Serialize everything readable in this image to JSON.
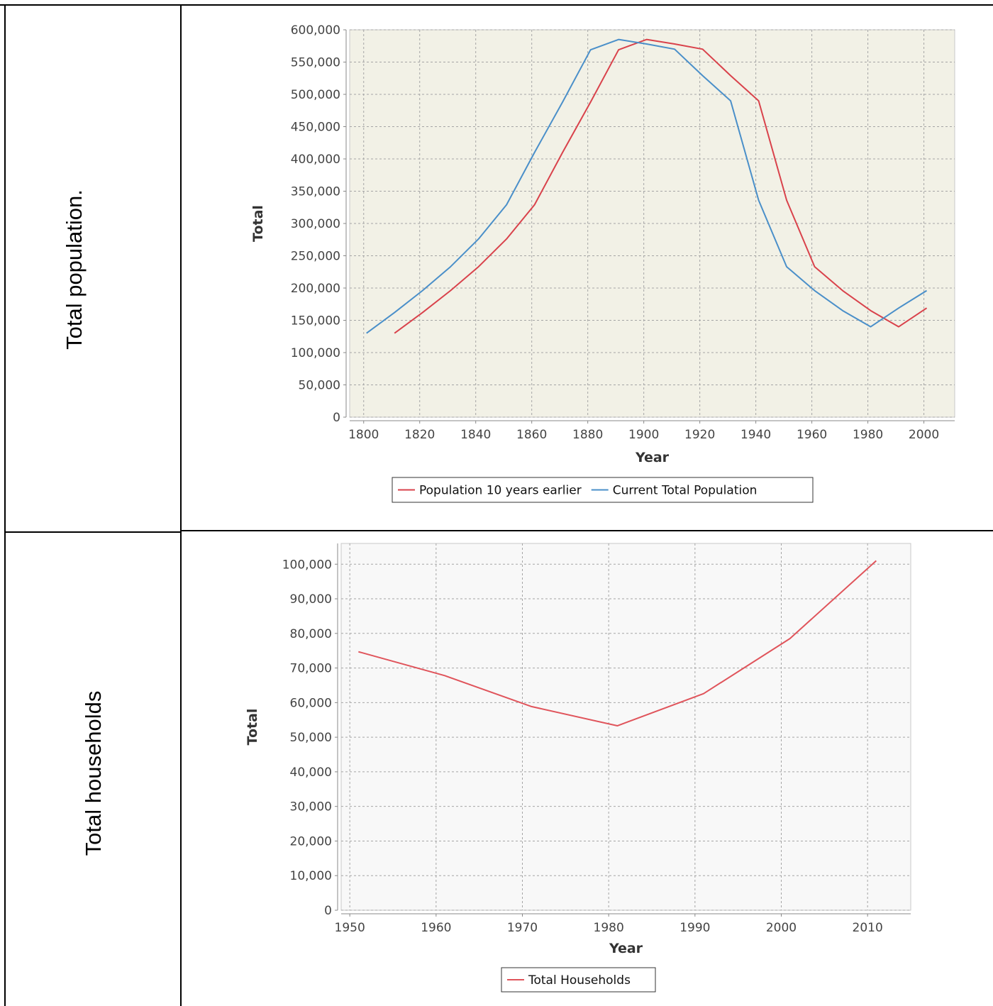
{
  "rows": [
    {
      "label": "Total population."
    },
    {
      "label": "Total households"
    }
  ],
  "chart_data": [
    {
      "type": "line",
      "xlabel": "Year",
      "ylabel": "Total",
      "xlim": [
        1795,
        2011
      ],
      "ylim": [
        0,
        600000
      ],
      "x_ticks": [
        1800,
        1820,
        1840,
        1860,
        1880,
        1900,
        1920,
        1940,
        1960,
        1980,
        2000
      ],
      "y_ticks": [
        0,
        50000,
        100000,
        150000,
        200000,
        250000,
        300000,
        350000,
        400000,
        450000,
        500000,
        550000,
        600000
      ],
      "x_tick_labels": [
        "1800",
        "1820",
        "1840",
        "1860",
        "1880",
        "1900",
        "1920",
        "1940",
        "1960",
        "1980",
        "2000"
      ],
      "y_tick_labels": [
        "0",
        "50,000",
        "100,000",
        "150,000",
        "200,000",
        "250,000",
        "300,000",
        "350,000",
        "400,000",
        "450,000",
        "500,000",
        "550,000",
        "600,000"
      ],
      "grid": true,
      "background": "#f2f1e6",
      "legend_position": "bottom",
      "series": [
        {
          "name": "Population 10 years earlier",
          "color": "#d9424b",
          "x": [
            1811,
            1821,
            1831,
            1841,
            1851,
            1861,
            1871,
            1881,
            1891,
            1901,
            1911,
            1921,
            1931,
            1941,
            1951,
            1961,
            1971,
            1981,
            1991,
            2001
          ],
          "y": [
            130000,
            162000,
            196000,
            233000,
            276000,
            329000,
            410000,
            488000,
            569000,
            585000,
            578000,
            570000,
            529000,
            490000,
            336000,
            233000,
            196000,
            165000,
            140000,
            169000
          ]
        },
        {
          "name": "Current Total Population",
          "color": "#4a8fc9",
          "x": [
            1801,
            1811,
            1821,
            1831,
            1841,
            1851,
            1861,
            1871,
            1881,
            1891,
            1901,
            1911,
            1921,
            1931,
            1941,
            1951,
            1961,
            1971,
            1981,
            1991,
            2001
          ],
          "y": [
            130000,
            162000,
            196000,
            233000,
            276000,
            329000,
            410000,
            488000,
            569000,
            585000,
            578000,
            570000,
            529000,
            490000,
            336000,
            233000,
            196000,
            165000,
            140000,
            169000,
            196000
          ]
        }
      ]
    },
    {
      "type": "line",
      "xlabel": "Year",
      "ylabel": "Total",
      "xlim": [
        1949,
        2015
      ],
      "ylim": [
        0,
        106000
      ],
      "x_ticks": [
        1950,
        1960,
        1970,
        1980,
        1990,
        2000,
        2010
      ],
      "y_ticks": [
        0,
        10000,
        20000,
        30000,
        40000,
        50000,
        60000,
        70000,
        80000,
        90000,
        100000
      ],
      "x_tick_labels": [
        "1950",
        "1960",
        "1970",
        "1980",
        "1990",
        "2000",
        "2010"
      ],
      "y_tick_labels": [
        "0",
        "10,000",
        "20,000",
        "30,000",
        "40,000",
        "50,000",
        "60,000",
        "70,000",
        "80,000",
        "90,000",
        "100,000"
      ],
      "grid": true,
      "background": "#f8f8f8",
      "legend_position": "bottom",
      "series": [
        {
          "name": "Total Households",
          "color": "#e0545b",
          "x": [
            1951,
            1961,
            1971,
            1981,
            1991,
            2001,
            2011
          ],
          "y": [
            74700,
            67800,
            58900,
            53300,
            62600,
            78500,
            101000
          ]
        }
      ]
    }
  ]
}
